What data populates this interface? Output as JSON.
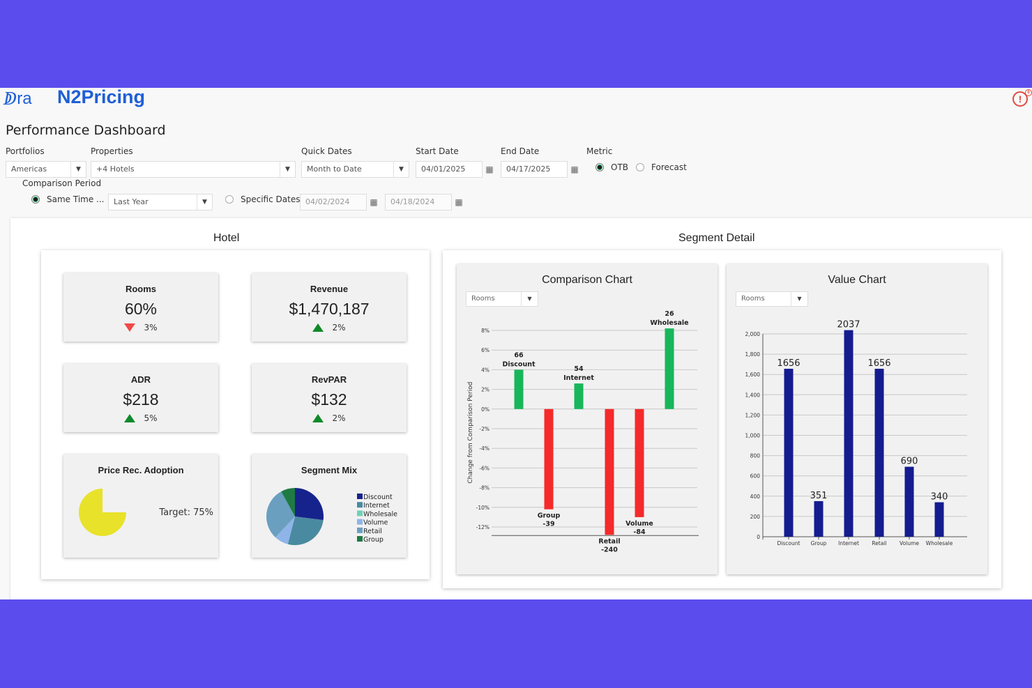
{
  "header": {
    "logo_mark": "ↁ",
    "logo_text": "ra",
    "product": "N2Pricing",
    "alert_icon": "!",
    "alert_badge": "0"
  },
  "page_title": "Performance Dashboard",
  "filters": {
    "portfolios_label": "Portfolios",
    "portfolios_value": "Americas",
    "properties_label": "Properties",
    "properties_value": "+4 Hotels",
    "quick_dates_label": "Quick Dates",
    "quick_dates_value": "Month to Date",
    "start_date_label": "Start Date",
    "start_date_value": "04/01/2025",
    "end_date_label": "End Date",
    "end_date_value": "04/17/2025",
    "metric_label": "Metric",
    "metric_otb": "OTB",
    "metric_forecast": "Forecast",
    "comparison_label": "Comparison Period",
    "same_time_label": "Same Time ...",
    "same_time_value": "Last Year",
    "specific_dates_label": "Specific Dates",
    "specific_start": "04/02/2024",
    "specific_end": "04/18/2024"
  },
  "hotel": {
    "title": "Hotel",
    "rooms": {
      "title": "Rooms",
      "value": "60%",
      "delta": "3%",
      "direction": "down"
    },
    "revenue": {
      "title": "Revenue",
      "value": "$1,470,187",
      "delta": "2%",
      "direction": "up"
    },
    "adr": {
      "title": "ADR",
      "value": "$218",
      "delta": "5%",
      "direction": "up"
    },
    "revpar": {
      "title": "RevPAR",
      "value": "$132",
      "delta": "2%",
      "direction": "up"
    },
    "adoption": {
      "title": "Price Rec. Adoption",
      "target": "Target: 75%",
      "value_fraction": 0.75,
      "color": "#e8e22a"
    },
    "segment_mix": {
      "title": "Segment Mix",
      "legend": [
        "Discount",
        "Internet",
        "Wholesale",
        "Volume",
        "Retail",
        "Group"
      ],
      "colors": [
        "#16238d",
        "#4a8aa0",
        "#6fd0b8",
        "#8fb4e8",
        "#6a9fc0",
        "#1f7a43"
      ],
      "values": [
        0.27,
        0.27,
        0.0,
        0.08,
        0.3,
        0.08
      ]
    }
  },
  "segment_detail": {
    "title": "Segment Detail",
    "comparison_chart": {
      "title": "Comparison Chart",
      "select_value": "Rooms",
      "ylabel": "Change from Comparison Period",
      "yticks": [
        "8%",
        "6%",
        "4%",
        "2%",
        "0%",
        "-2%",
        "-4%",
        "-6%",
        "-8%",
        "-10%",
        "-12%"
      ],
      "ylim": [
        -12.8,
        8.5
      ],
      "bars": [
        {
          "name": "Discount",
          "value": 66,
          "pct": 4.0,
          "label_top": "66",
          "label_bot": "Discount"
        },
        {
          "name": "Group",
          "value": -39,
          "pct": -10.2,
          "label_top": "Group",
          "label_bot": "-39"
        },
        {
          "name": "Internet",
          "value": 54,
          "pct": 2.6,
          "label_top": "54",
          "label_bot": "Internet"
        },
        {
          "name": "Retail",
          "value": -240,
          "pct": -12.8,
          "label_top": "Retail",
          "label_bot": "-240"
        },
        {
          "name": "Volume",
          "value": -84,
          "pct": -11.0,
          "label_top": "Volume",
          "label_bot": "-84"
        },
        {
          "name": "Wholesale",
          "value": 26,
          "pct": 8.2,
          "label_top": "26",
          "label_bot": "Wholesale"
        }
      ],
      "pos_color": "#18b65a",
      "neg_color": "#f52a2a"
    },
    "value_chart": {
      "title": "Value Chart",
      "select_value": "Rooms",
      "yticks": [
        "2,000",
        "1,800",
        "1,600",
        "1,400",
        "1,200",
        "1,000",
        "800",
        "600",
        "400",
        "200",
        "0"
      ],
      "ylim": [
        0,
        2000
      ],
      "categories": [
        "Discount",
        "Group",
        "Internet",
        "Retail",
        "Volume",
        "Wholesale"
      ],
      "values": [
        1656,
        351,
        2037,
        1656,
        690,
        340
      ],
      "value_labels": [
        "1656",
        "351",
        "2037",
        "1656",
        "690",
        "340"
      ],
      "color": "#141c8f"
    }
  },
  "chart_data": [
    {
      "type": "bar",
      "title": "Comparison Chart",
      "ylabel": "Change from Comparison Period",
      "categories": [
        "Discount",
        "Group",
        "Internet",
        "Retail",
        "Volume",
        "Wholesale"
      ],
      "values": [
        66,
        -39,
        54,
        -240,
        -84,
        26
      ],
      "percent_change": [
        4.0,
        -10.2,
        2.6,
        -12.8,
        -11.0,
        8.2
      ],
      "ylim": [
        -12.8,
        8.5
      ],
      "grid": true
    },
    {
      "type": "bar",
      "title": "Value Chart",
      "categories": [
        "Discount",
        "Group",
        "Internet",
        "Retail",
        "Volume",
        "Wholesale"
      ],
      "values": [
        1656,
        351,
        2037,
        1656,
        690,
        340
      ],
      "ylim": [
        0,
        2000
      ],
      "grid": true
    },
    {
      "type": "pie",
      "title": "Segment Mix",
      "categories": [
        "Discount",
        "Internet",
        "Wholesale",
        "Volume",
        "Retail",
        "Group"
      ],
      "values": [
        0.27,
        0.27,
        0.0,
        0.08,
        0.3,
        0.08
      ]
    },
    {
      "type": "pie",
      "title": "Price Rec. Adoption",
      "categories": [
        "Adoption"
      ],
      "values": [
        0.75
      ]
    }
  ]
}
